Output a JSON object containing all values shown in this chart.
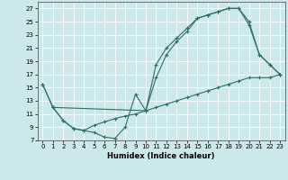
{
  "xlabel": "Humidex (Indice chaleur)",
  "background_color": "#cce8ea",
  "grid_color": "#ffffff",
  "line_color": "#2d6e65",
  "xlim": [
    -0.5,
    23.5
  ],
  "ylim": [
    7,
    28
  ],
  "yticks": [
    7,
    9,
    11,
    13,
    15,
    17,
    19,
    21,
    23,
    25,
    27
  ],
  "xticks": [
    0,
    1,
    2,
    3,
    4,
    5,
    6,
    7,
    8,
    9,
    10,
    11,
    12,
    13,
    14,
    15,
    16,
    17,
    18,
    19,
    20,
    21,
    22,
    23
  ],
  "line1": {
    "x": [
      0,
      1,
      2,
      3,
      4,
      5,
      6,
      7,
      8,
      9,
      10,
      11,
      12,
      13,
      14,
      15,
      16,
      17,
      18,
      19,
      20,
      21,
      22,
      23
    ],
    "y": [
      15.5,
      12,
      10,
      8.8,
      8.5,
      8.2,
      7.5,
      7.3,
      9.0,
      14.0,
      11.5,
      18.5,
      21.0,
      22.5,
      24.0,
      25.5,
      26.0,
      26.5,
      27.0,
      27.0,
      25.0,
      20.0,
      18.5,
      17.0
    ]
  },
  "line2": {
    "x": [
      0,
      1,
      10,
      11,
      12,
      13,
      14,
      15,
      16,
      17,
      18,
      19,
      20,
      21,
      22,
      23
    ],
    "y": [
      15.5,
      12,
      11.5,
      16.5,
      20.0,
      22.0,
      23.5,
      25.5,
      26.0,
      26.5,
      27.0,
      27.0,
      24.5,
      20.0,
      18.5,
      17.0
    ]
  },
  "line3": {
    "x": [
      1,
      2,
      3,
      4,
      5,
      6,
      7,
      8,
      9,
      10,
      11,
      12,
      13,
      14,
      15,
      16,
      17,
      18,
      19,
      20,
      21,
      22,
      23
    ],
    "y": [
      12.0,
      10.0,
      8.8,
      8.5,
      9.3,
      9.8,
      10.3,
      10.7,
      11.0,
      11.5,
      12.0,
      12.5,
      13.0,
      13.5,
      14.0,
      14.5,
      15.0,
      15.5,
      16.0,
      16.5,
      16.5,
      16.5,
      17.0
    ]
  }
}
